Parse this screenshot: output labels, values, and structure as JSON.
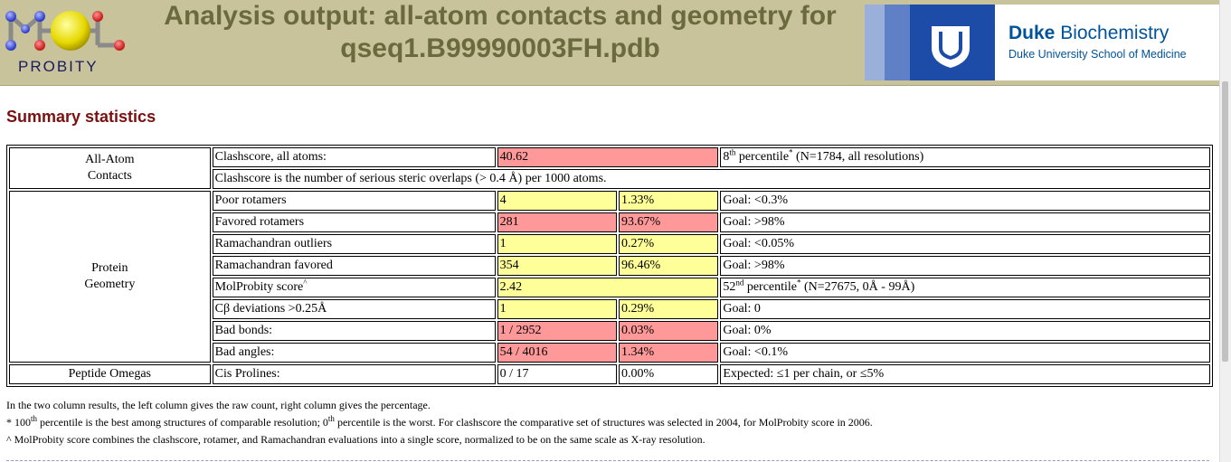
{
  "header": {
    "logo_text": "PROBITY",
    "title_line1": "Analysis output: all-atom contacts and geometry for",
    "title_line2": "qseq1.B99990003FH.pdb",
    "duke_name_bold": "Duke",
    "duke_name_rest": "Biochemistry",
    "duke_school": "Duke University School of Medicine"
  },
  "section_title": "Summary statistics",
  "table": {
    "all_atom_label_1": "All-Atom",
    "all_atom_label_2": "Contacts",
    "clash_label": "Clashscore, all atoms:",
    "clash_value": "40.62",
    "clash_pct_ord": "8",
    "clash_pct_sup": "th",
    "clash_pct_word": "percentile",
    "clash_pct_note": "(N=1784, all resolutions)",
    "clash_desc": "Clashscore is the number of serious steric overlaps (> 0.4 Å) per 1000 atoms.",
    "protein_label_1": "Protein",
    "protein_label_2": "Geometry",
    "poor_label": "Poor rotamers",
    "poor_count": "4",
    "poor_pct": "1.33%",
    "poor_goal": "Goal: <0.3%",
    "fav_label": "Favored rotamers",
    "fav_count": "281",
    "fav_pct": "93.67%",
    "fav_goal": "Goal: >98%",
    "rama_out_label": "Ramachandran outliers",
    "rama_out_count": "1",
    "rama_out_pct": "0.27%",
    "rama_out_goal": "Goal: <0.05%",
    "rama_fav_label": "Ramachandran favored",
    "rama_fav_count": "354",
    "rama_fav_pct": "96.46%",
    "rama_fav_goal": "Goal: >98%",
    "molp_label": "MolProbity score",
    "molp_value": "2.42",
    "molp_pct_ord": "52",
    "molp_pct_sup": "nd",
    "molp_pct_word": "percentile",
    "molp_pct_note": "(N=27675, 0Å - 99Å)",
    "cb_label": "Cβ deviations >0.25Å",
    "cb_count": "1",
    "cb_pct": "0.29%",
    "cb_goal": "Goal: 0",
    "bonds_label": "Bad bonds:",
    "bonds_count": "1 / 2952",
    "bonds_pct": "0.03%",
    "bonds_goal": "Goal: 0%",
    "angles_label": "Bad angles:",
    "angles_count": "54 / 4016",
    "angles_pct": "1.34%",
    "angles_goal": "Goal: <0.1%",
    "omega_label": "Peptide Omegas",
    "cis_label": "Cis Prolines:",
    "cis_count": "0 / 17",
    "cis_pct": "0.00%",
    "cis_expect": "Expected: ≤1 per chain, or ≤5%"
  },
  "notes": {
    "line1": "In the two column results, the left column gives the raw count, right column gives the percentage.",
    "line2_a": "* 100",
    "line2_sup1": "th",
    "line2_b": " percentile is the best among structures of comparable resolution; 0",
    "line2_sup2": "th",
    "line2_c": " percentile is the worst. For clashscore the comparative set of structures was selected in 2004, for MolProbity score in 2006.",
    "line3": "^ MolProbity score combines the clashscore, rotamer, and Ramachandran evaluations into a single score, normalized to be on the same scale as X-ray resolution."
  },
  "colors": {
    "bad": "#ff9999",
    "warn": "#ffff99",
    "header_bg": "#c9c39b",
    "title": "#6b6a3e",
    "section": "#7a1010"
  }
}
